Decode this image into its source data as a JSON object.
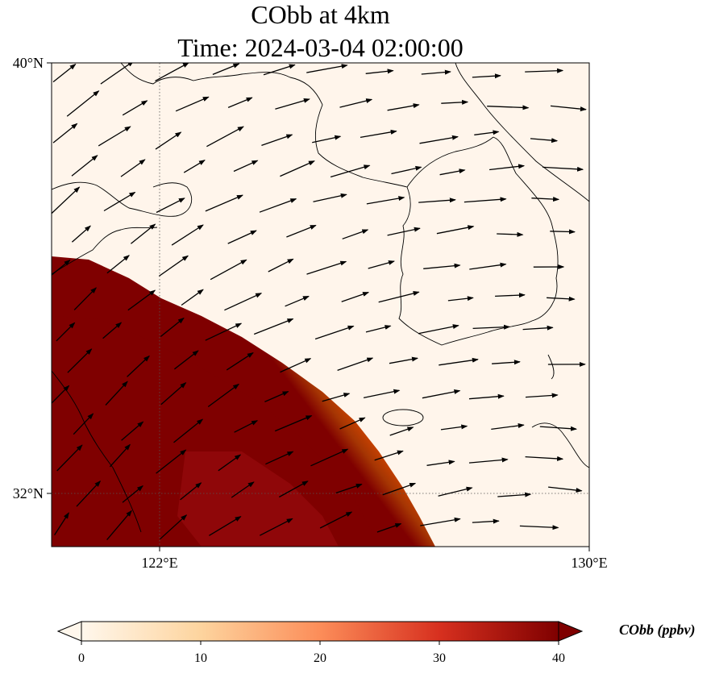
{
  "title": {
    "line1": "CObb at 4km",
    "line2": "Time: 2024-03-04 02:00:00"
  },
  "map": {
    "lon_range": [
      120,
      130
    ],
    "lat_range": [
      31,
      40
    ],
    "x_ticks": [
      {
        "lon": 122,
        "label": "122°E"
      },
      {
        "lon": 130,
        "label": "130°E"
      }
    ],
    "y_ticks": [
      {
        "lat": 40,
        "label": "40°N"
      },
      {
        "lat": 32,
        "label": "32°N"
      }
    ],
    "gridlines": "dotted",
    "field_colors": {
      "low": "#fff5eb",
      "mid": "#fd8d3c",
      "high": "#7f0000"
    }
  },
  "colorbar": {
    "label": "CObb (ppbv)",
    "min": 0,
    "max": 40,
    "ticks": [
      {
        "value": 0,
        "label": "0"
      },
      {
        "value": 10,
        "label": "10"
      },
      {
        "value": 20,
        "label": "20"
      },
      {
        "value": 30,
        "label": "30"
      },
      {
        "value": 40,
        "label": "40"
      }
    ],
    "extend": "both",
    "colormap": "OrRd"
  }
}
